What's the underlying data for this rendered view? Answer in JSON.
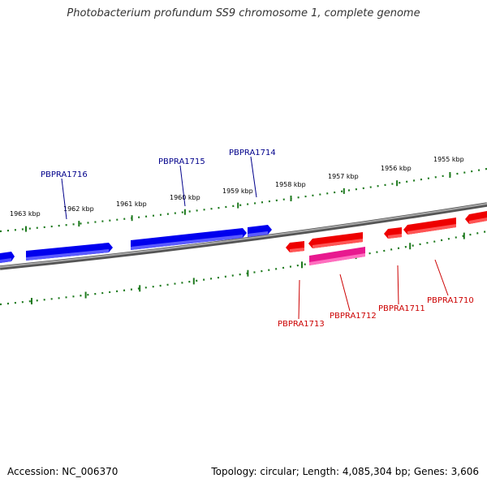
{
  "title": "Photobacterium profundum SS9 chromosome 1, complete genome",
  "footer": {
    "accession": "Accession: NC_006370",
    "topology": "Topology: circular; Length: 4,085,304 bp; Genes: 3,606"
  },
  "colors": {
    "backbone": "#808080",
    "ticks": "#1e7a1e",
    "forward_gene": "#0000ee",
    "reverse_gene": "#ee0000",
    "rna_gene": "#e8198f",
    "forward_label": "#00008b",
    "reverse_label": "#cc0000"
  },
  "kbp_labels": [
    "1963 kbp",
    "1962 kbp",
    "1961 kbp",
    "1960 kbp",
    "1959 kbp",
    "1958 kbp",
    "1957 kbp",
    "1956 kbp",
    "1955 kbp"
  ],
  "forward_gene_labels": [
    "PBPRA1716",
    "PBPRA1715",
    "PBPRA1714"
  ],
  "reverse_gene_labels": [
    "PBPRA1713",
    "PBPRA1712",
    "PBPRA1711",
    "PBPRA1710"
  ]
}
